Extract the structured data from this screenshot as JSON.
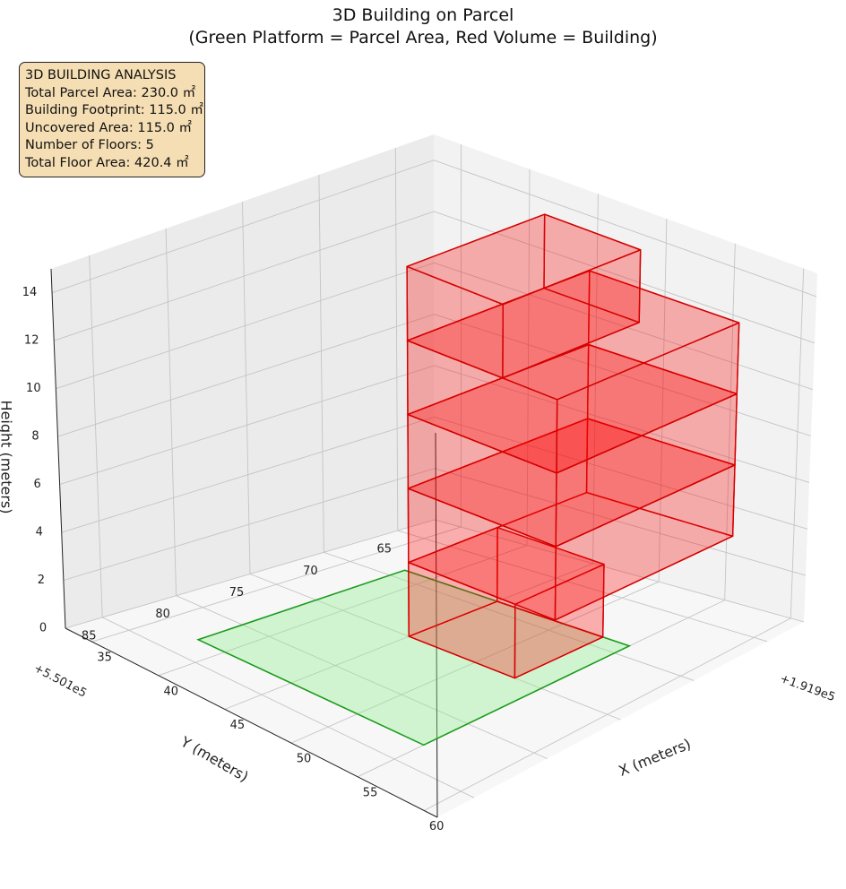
{
  "title_line_1": "3D Building on Parcel",
  "title_line_2": "(Green Platform = Parcel Area, Red Volume = Building)",
  "info_box": {
    "heading": "3D BUILDING ANALYSIS",
    "lines": [
      "Total Parcel Area: 230.0 ㎡",
      "Building Footprint: 115.0 ㎡",
      "Uncovered Area: 115.0 ㎡",
      "Number of Floors: 5",
      "Total Floor Area: 420.4 ㎡"
    ]
  },
  "chart_data": {
    "type": "3d-box",
    "title": "3D Building on Parcel\n(Green Platform = Parcel Area, Red Volume = Building)",
    "xlabel": "X (meters)",
    "ylabel": "Y (meters)",
    "zlabel": "Height (meters)",
    "x_offset_label": "+1.919e5",
    "y_offset_label": "+5.501e5",
    "x_ticks": [
      35,
      40,
      45,
      50,
      55,
      60
    ],
    "y_ticks": [
      65,
      70,
      75,
      80,
      85
    ],
    "z_ticks": [
      0,
      2,
      4,
      6,
      8,
      10,
      12,
      14
    ],
    "xlim": [
      33,
      61
    ],
    "ylim": [
      62.5,
      87.5
    ],
    "zlim": [
      0,
      15
    ],
    "grid": true,
    "parcel": {
      "label": "Parcel Area",
      "color": "#90ee90",
      "x": [
        38,
        55
      ],
      "y": [
        69,
        83
      ],
      "z": 0
    },
    "floors": [
      {
        "floor": 1,
        "x": [
          45,
          53
        ],
        "y": [
          69,
          75
        ],
        "z": [
          0,
          3
        ]
      },
      {
        "floor": 2,
        "x": [
          45,
          56
        ],
        "y": [
          63,
          75
        ],
        "z": [
          3,
          6
        ]
      },
      {
        "floor": 3,
        "x": [
          45,
          56
        ],
        "y": [
          63,
          75
        ],
        "z": [
          6,
          9
        ]
      },
      {
        "floor": 4,
        "x": [
          45,
          56
        ],
        "y": [
          63,
          75
        ],
        "z": [
          9,
          12
        ]
      },
      {
        "floor": 5,
        "x": [
          45,
          52
        ],
        "y": [
          66,
          75
        ],
        "z": [
          12,
          15
        ]
      }
    ],
    "building_color": "#ff0000",
    "building_label": "Building"
  }
}
